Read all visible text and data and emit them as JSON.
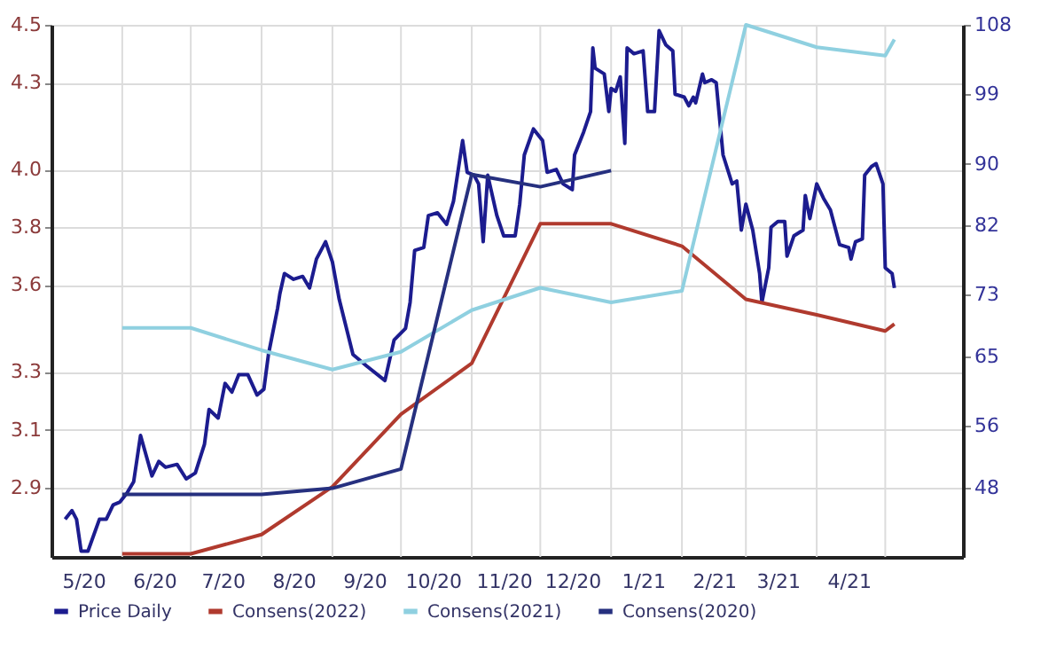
{
  "chart_data": {
    "type": "line",
    "xlim": [
      "2020-05-01",
      "2021-06-04"
    ],
    "xticks": [
      {
        "value": "2020-05-15",
        "label": "5/20"
      },
      {
        "value": "2020-06-15",
        "label": "6/20"
      },
      {
        "value": "2020-07-15",
        "label": "7/20"
      },
      {
        "value": "2020-08-15",
        "label": "8/20"
      },
      {
        "value": "2020-09-15",
        "label": "9/20"
      },
      {
        "value": "2020-10-15",
        "label": "10/20"
      },
      {
        "value": "2020-11-15",
        "label": "11/20"
      },
      {
        "value": "2020-12-15",
        "label": "12/20"
      },
      {
        "value": "2021-01-15",
        "label": "1/21"
      },
      {
        "value": "2021-02-15",
        "label": "2/21"
      },
      {
        "value": "2021-03-15",
        "label": "3/21"
      },
      {
        "value": "2021-04-15",
        "label": "4/21"
      },
      {
        "value": "2020-06-01",
        "label": null
      },
      {
        "value": "2020-07-01",
        "label": null
      },
      {
        "value": "2020-08-01",
        "label": null
      },
      {
        "value": "2020-09-01",
        "label": null
      },
      {
        "value": "2020-10-01",
        "label": null
      },
      {
        "value": "2020-11-01",
        "label": null
      },
      {
        "value": "2020-12-01",
        "label": null
      },
      {
        "value": "2021-01-01",
        "label": null
      },
      {
        "value": "2021-02-01",
        "label": null
      },
      {
        "value": "2021-03-01",
        "label": null
      },
      {
        "value": "2021-04-01",
        "label": null
      },
      {
        "value": "2021-05-01",
        "label": null
      }
    ],
    "ylim": [
      2.66,
      4.5
    ],
    "yticks": [
      2.9,
      3.1,
      3.3,
      3.6,
      3.8,
      {
        "value": 4.0,
        "label": "4.0"
      },
      4.3,
      4.5
    ],
    "y2lim": [
      39,
      108
    ],
    "y2ticks": [
      48,
      56,
      65,
      73,
      82,
      90,
      99,
      108
    ],
    "grid": true,
    "legend": "bottom",
    "series": [
      {
        "name": "Price Daily",
        "color": "#1c1c8f",
        "axis": "y",
        "x": [
          "2020-05-07",
          "2020-05-10",
          "2020-05-12",
          "2020-05-14",
          "2020-05-17",
          "2020-05-22",
          "2020-05-25",
          "2020-05-28",
          "2020-05-31",
          "2020-06-03",
          "2020-06-06",
          "2020-06-09",
          "2020-06-14",
          "2020-06-17",
          "2020-06-20",
          "2020-06-25",
          "2020-06-29",
          "2020-07-03",
          "2020-07-07",
          "2020-07-09",
          "2020-07-13",
          "2020-07-16",
          "2020-07-19",
          "2020-07-22",
          "2020-07-26",
          "2020-07-30",
          "2020-08-02",
          "2020-08-04",
          "2020-08-08",
          "2020-08-09",
          "2020-08-11",
          "2020-08-15",
          "2020-08-19",
          "2020-08-22",
          "2020-08-25",
          "2020-08-29",
          "2020-09-01",
          "2020-09-04",
          "2020-09-10",
          "2020-09-16",
          "2020-09-24",
          "2020-09-28",
          "2020-10-03",
          "2020-10-05",
          "2020-10-07",
          "2020-10-11",
          "2020-10-13",
          "2020-10-17",
          "2020-10-21",
          "2020-10-24",
          "2020-10-28",
          "2020-10-30",
          "2020-11-02",
          "2020-11-04",
          "2020-11-06",
          "2020-11-08",
          "2020-11-12",
          "2020-11-15",
          "2020-11-20",
          "2020-11-22",
          "2020-11-24",
          "2020-11-28",
          "2020-12-02",
          "2020-12-04",
          "2020-12-08",
          "2020-12-11",
          "2020-12-15",
          "2020-12-16",
          "2020-12-20",
          "2020-12-23",
          "2020-12-24",
          "2020-12-25",
          "2020-12-29",
          "2020-12-31",
          "2021-01-01",
          "2021-01-03",
          "2021-01-05",
          "2021-01-07",
          "2021-01-08",
          "2021-01-11",
          "2021-01-15",
          "2021-01-17",
          "2021-01-20",
          "2021-01-22",
          "2021-01-25",
          "2021-01-28",
          "2021-01-29",
          "2021-02-02",
          "2021-02-04",
          "2021-02-06",
          "2021-02-07",
          "2021-02-10",
          "2021-02-11",
          "2021-02-14",
          "2021-02-16",
          "2021-02-19",
          "2021-02-23",
          "2021-02-25",
          "2021-02-27",
          "2021-03-01",
          "2021-03-04",
          "2021-03-07",
          "2021-03-08",
          "2021-03-11",
          "2021-03-12",
          "2021-03-15",
          "2021-03-18",
          "2021-03-19",
          "2021-03-22",
          "2021-03-26",
          "2021-03-27",
          "2021-03-29",
          "2021-04-01",
          "2021-04-04",
          "2021-04-07",
          "2021-04-11",
          "2021-04-15",
          "2021-04-16",
          "2021-04-18",
          "2021-04-21",
          "2021-04-22",
          "2021-04-25",
          "2021-04-27",
          "2021-04-30",
          "2021-05-01",
          "2021-05-04",
          "2021-05-05"
        ],
        "values": [
          2.79,
          2.82,
          2.79,
          2.68,
          2.68,
          2.79,
          2.79,
          2.84,
          2.85,
          2.88,
          2.92,
          3.08,
          2.94,
          2.99,
          2.97,
          2.98,
          2.93,
          2.95,
          3.05,
          3.17,
          3.14,
          3.26,
          3.23,
          3.29,
          3.29,
          3.22,
          3.24,
          3.36,
          3.52,
          3.57,
          3.64,
          3.62,
          3.63,
          3.59,
          3.69,
          3.75,
          3.68,
          3.55,
          3.36,
          3.32,
          3.27,
          3.41,
          3.45,
          3.54,
          3.72,
          3.73,
          3.84,
          3.85,
          3.81,
          3.89,
          4.1,
          3.99,
          3.98,
          3.95,
          3.75,
          3.98,
          3.84,
          3.77,
          3.77,
          3.88,
          4.05,
          4.14,
          4.1,
          3.99,
          4.0,
          3.95,
          3.93,
          4.05,
          4.13,
          4.2,
          4.42,
          4.35,
          4.33,
          4.2,
          4.28,
          4.27,
          4.32,
          4.09,
          4.42,
          4.4,
          4.41,
          4.2,
          4.2,
          4.48,
          4.43,
          4.41,
          4.26,
          4.25,
          4.22,
          4.25,
          4.23,
          4.33,
          4.3,
          4.31,
          4.3,
          4.05,
          3.95,
          3.96,
          3.79,
          3.88,
          3.79,
          3.64,
          3.54,
          3.66,
          3.8,
          3.82,
          3.82,
          3.7,
          3.77,
          3.79,
          3.91,
          3.83,
          3.95,
          3.9,
          3.86,
          3.74,
          3.73,
          3.69,
          3.75,
          3.76,
          3.98,
          4.01,
          4.02,
          3.95,
          3.66,
          3.64,
          3.59
        ]
      },
      {
        "name": "Consens(2022)",
        "color": "#b03a2e",
        "axis": "y2",
        "x": [
          "2020-06-01",
          "2020-07-01",
          "2020-08-01",
          "2020-09-01",
          "2020-10-01",
          "2020-11-01",
          "2020-12-01",
          "2021-01-01",
          "2021-02-01",
          "2021-03-01",
          "2021-04-01",
          "2021-05-01",
          "2021-05-05"
        ],
        "values": [
          39.4,
          39.4,
          41.9,
          48.1,
          57.5,
          64.1,
          82.2,
          82.2,
          79.3,
          72.4,
          70.4,
          68.3,
          69.2
        ]
      },
      {
        "name": "Consens(2021)",
        "color": "#8fd0e0",
        "axis": "y2",
        "x": [
          "2020-06-01",
          "2020-07-01",
          "2020-08-01",
          "2020-09-01",
          "2020-10-01",
          "2020-11-01",
          "2020-12-01",
          "2021-01-01",
          "2021-02-01",
          "2021-03-01",
          "2021-04-01",
          "2021-05-01",
          "2021-05-05"
        ],
        "values": [
          68.7,
          68.7,
          65.8,
          63.3,
          65.6,
          71.0,
          73.9,
          72.0,
          73.5,
          108.0,
          105.1,
          104.0,
          106.1
        ]
      },
      {
        "name": "Consens(2020)",
        "color": "#26307f",
        "axis": "y2",
        "x": [
          "2020-06-01",
          "2020-07-01",
          "2020-08-01",
          "2020-09-01",
          "2020-10-01",
          "2020-11-01",
          "2020-12-01",
          "2021-01-01"
        ],
        "values": [
          47.1,
          47.1,
          47.1,
          47.9,
          50.4,
          88.6,
          87.0,
          89.1
        ]
      }
    ]
  }
}
